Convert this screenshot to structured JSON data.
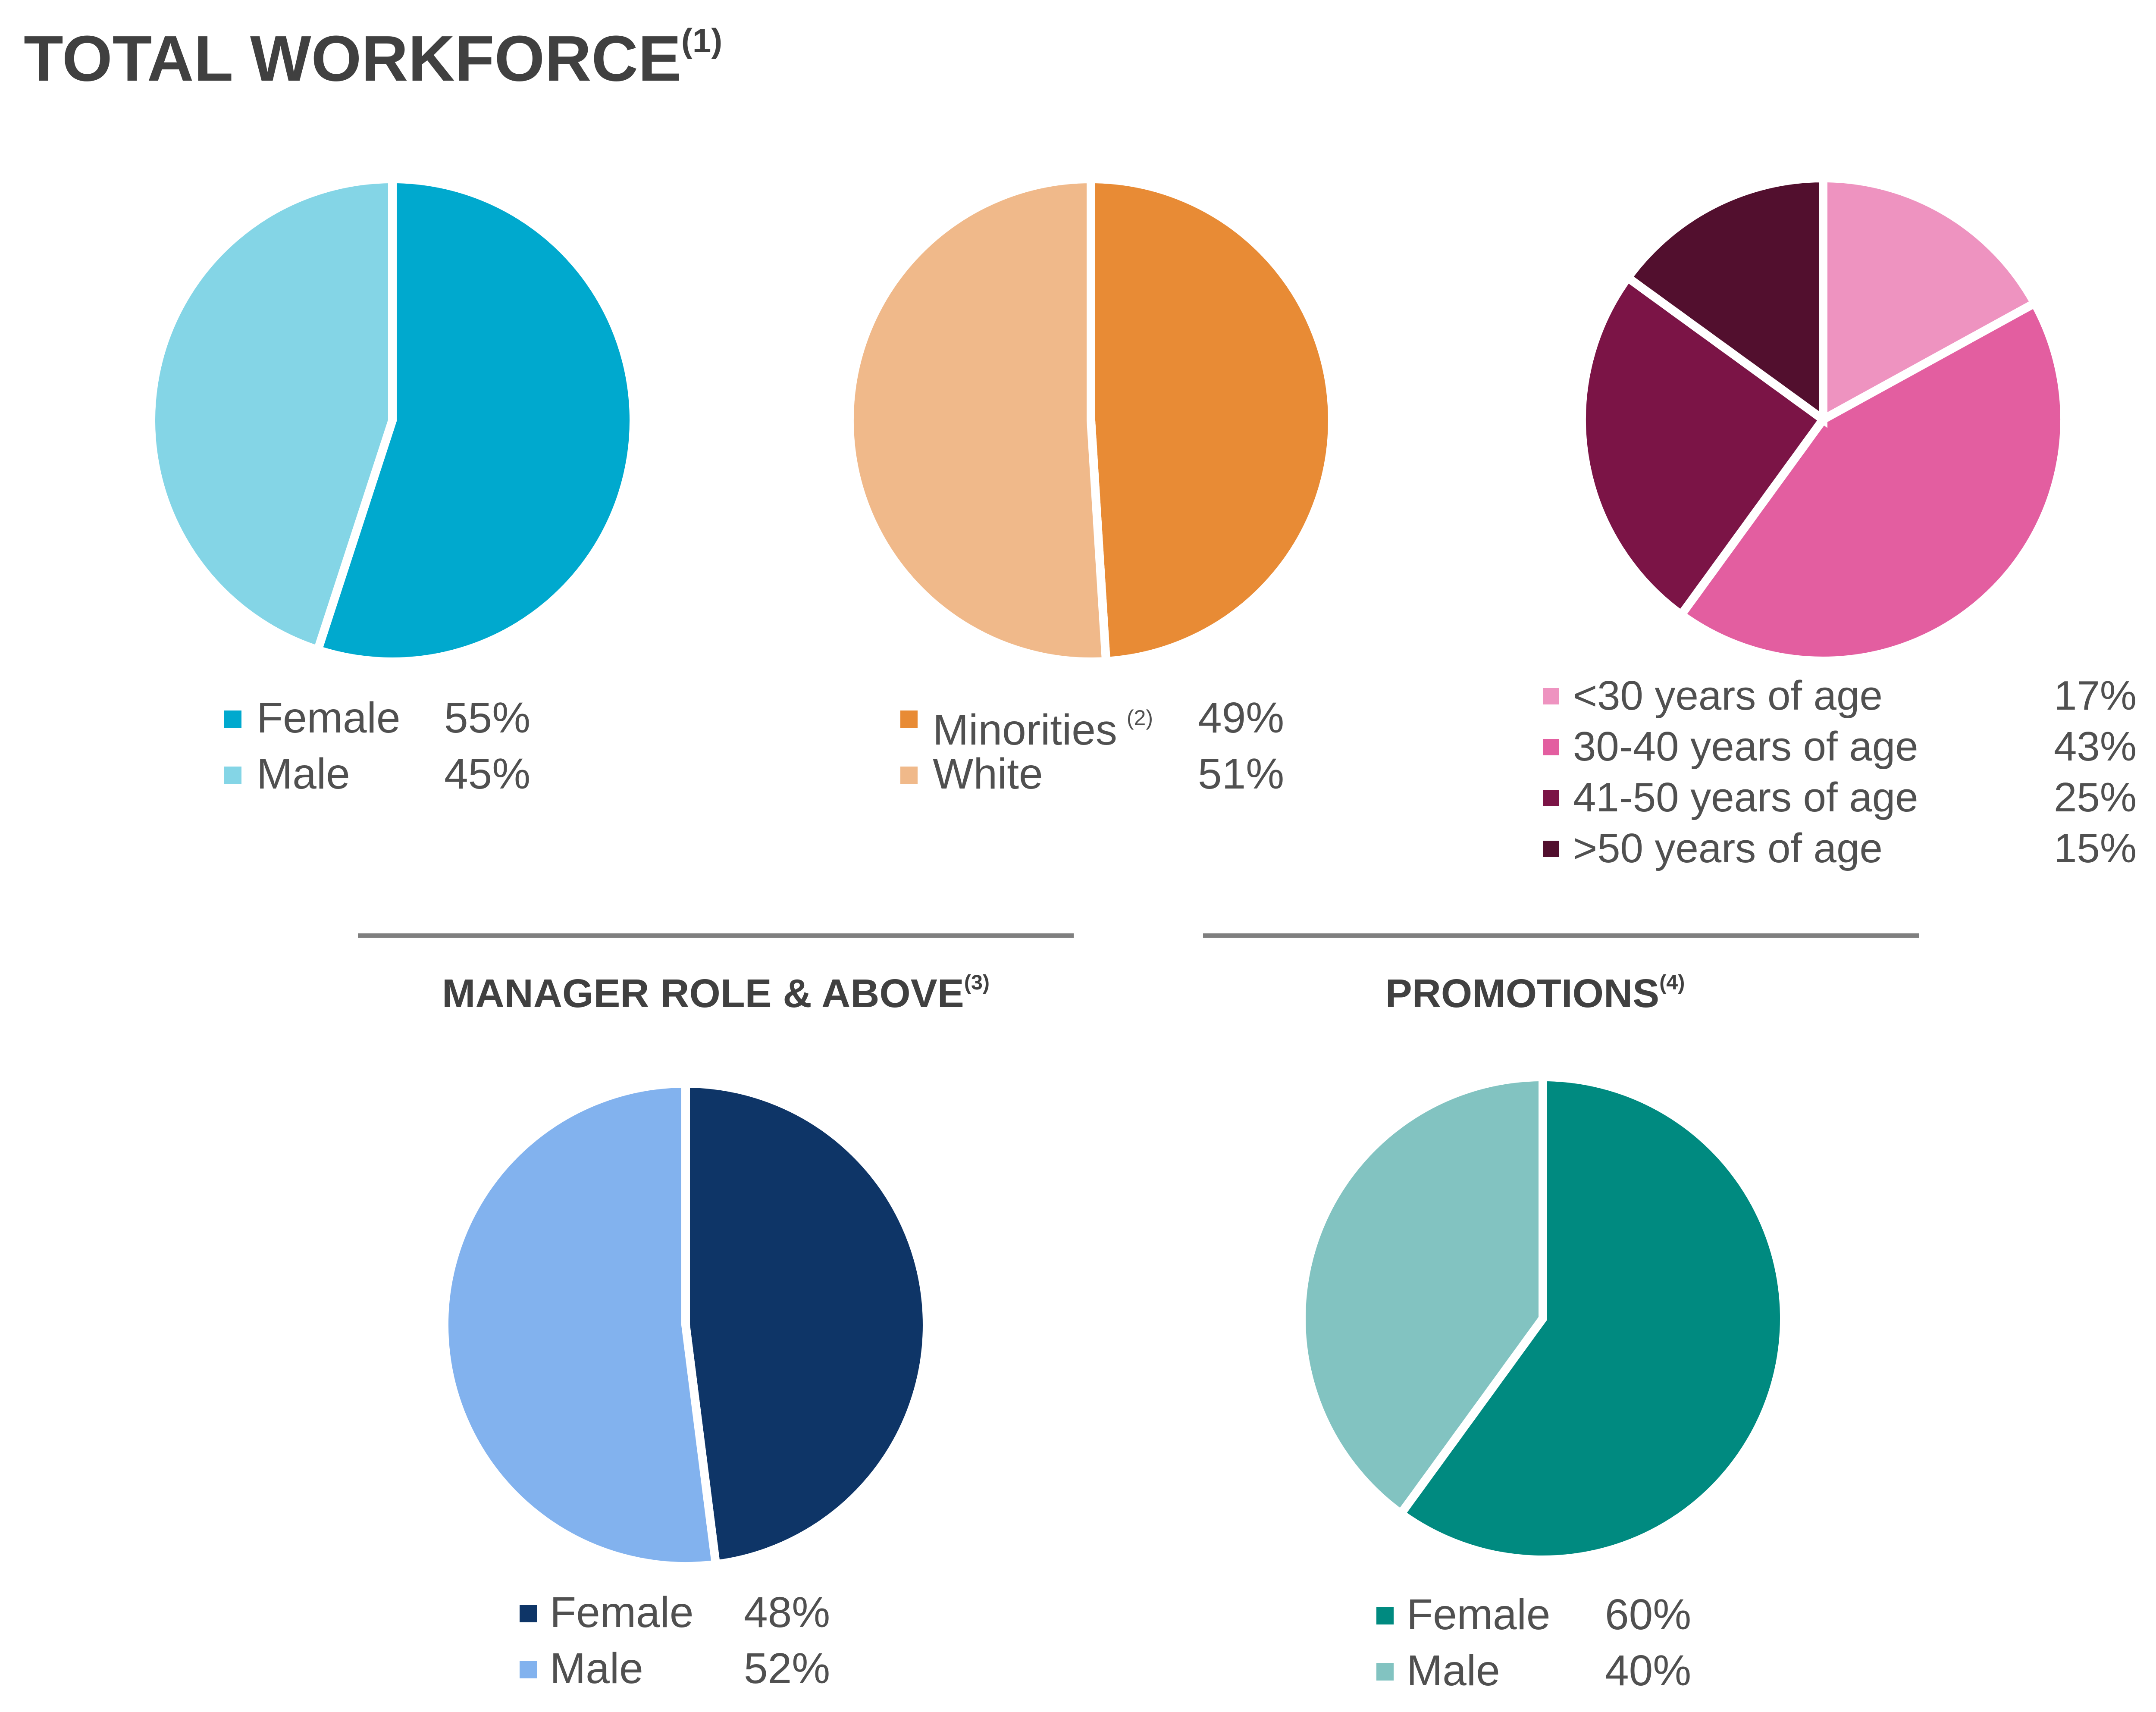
{
  "header": {
    "title": "TOTAL WORKFORCE",
    "title_note": "(1)"
  },
  "sections": {
    "manager": {
      "title": "MANAGER ROLE & ABOVE",
      "note": "(3)"
    },
    "promotions": {
      "title": "PROMOTIONS",
      "note": "(4)"
    }
  },
  "chart_data": [
    {
      "type": "pie",
      "title": "TOTAL WORKFORCE — Gender",
      "slices": [
        {
          "label": "Female",
          "value": 55,
          "display": "55%",
          "color": "#00a9ce"
        },
        {
          "label": "Male",
          "value": 45,
          "display": "45%",
          "color": "#84d5e6"
        }
      ]
    },
    {
      "type": "pie",
      "title": "TOTAL WORKFORCE — Ethnicity",
      "slices": [
        {
          "label": "Minorities",
          "note": "(2)",
          "value": 49,
          "display": "49%",
          "color": "#e88b35"
        },
        {
          "label": "White",
          "value": 51,
          "display": "51%",
          "color": "#f0b98a"
        }
      ]
    },
    {
      "type": "pie",
      "title": "TOTAL WORKFORCE — Age",
      "slices": [
        {
          "label": "<30 years of age",
          "value": 17,
          "display": "17%",
          "color": "#ee93c0"
        },
        {
          "label": "30-40 years of age",
          "value": 43,
          "display": "43%",
          "color": "#e35ea0"
        },
        {
          "label": "41-50 years of age",
          "value": 25,
          "display": "25%",
          "color": "#7b1446"
        },
        {
          "label": ">50 years of age",
          "value": 15,
          "display": "15%",
          "color": "#520f2e"
        }
      ]
    },
    {
      "type": "pie",
      "title": "MANAGER ROLE & ABOVE",
      "slices": [
        {
          "label": "Female",
          "value": 48,
          "display": "48%",
          "color": "#0e3567"
        },
        {
          "label": "Male",
          "value": 52,
          "display": "52%",
          "color": "#82b2ee"
        }
      ]
    },
    {
      "type": "pie",
      "title": "PROMOTIONS",
      "slices": [
        {
          "label": "Female",
          "value": 60,
          "display": "60%",
          "color": "#008a80"
        },
        {
          "label": "Male",
          "value": 40,
          "display": "40%",
          "color": "#82c3c1"
        }
      ]
    }
  ]
}
